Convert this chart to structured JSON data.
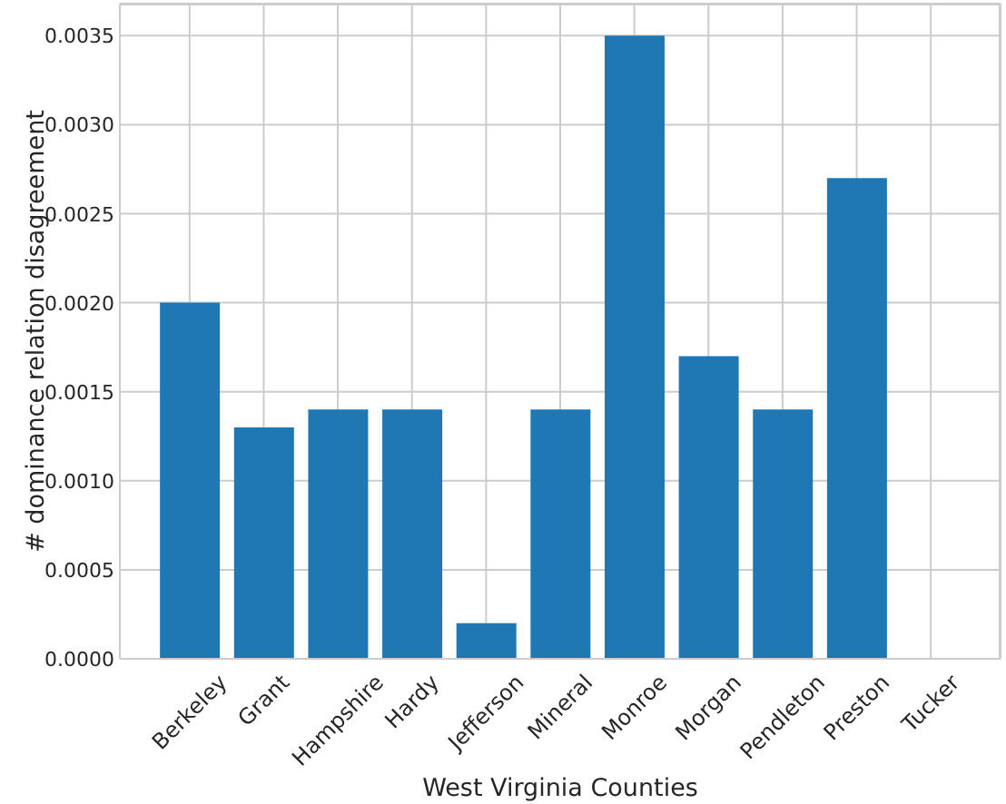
{
  "chart_data": {
    "type": "bar",
    "xlabel": "West Virginia Counties",
    "ylabel": "# dominance relation disagreement",
    "categories": [
      "Berkeley",
      "Grant",
      "Hampshire",
      "Hardy",
      "Jefferson",
      "Mineral",
      "Monroe",
      "Morgan",
      "Pendleton",
      "Preston",
      "Tucker"
    ],
    "values": [
      0.002,
      0.0013,
      0.0014,
      0.0014,
      0.0002,
      0.0014,
      0.0035,
      0.0017,
      0.0014,
      0.0027,
      0
    ],
    "color": "#1f77b4",
    "ylim": [
      0,
      0.00368
    ],
    "yticks": [
      {
        "value": 0,
        "label": "0.0000"
      },
      {
        "value": 0.0005,
        "label": "0.0005"
      },
      {
        "value": 0.001,
        "label": "0.0010"
      },
      {
        "value": 0.0015,
        "label": "0.0015"
      },
      {
        "value": 0.002,
        "label": "0.0020"
      },
      {
        "value": 0.0025,
        "label": "0.0025"
      },
      {
        "value": 0.003,
        "label": "0.0030"
      },
      {
        "value": 0.0035,
        "label": "0.0035"
      }
    ],
    "grid": true
  }
}
